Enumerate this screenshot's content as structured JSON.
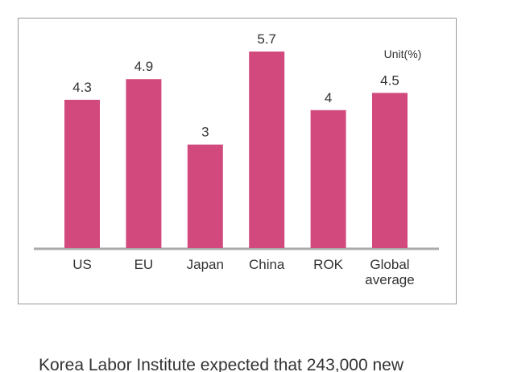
{
  "chart_data": {
    "type": "bar",
    "categories": [
      "US",
      "EU",
      "Japan",
      "China",
      "ROK",
      "Global average"
    ],
    "values": [
      4.3,
      4.9,
      3.0,
      5.7,
      4.0,
      4.5
    ],
    "color": "#d24a7d",
    "unit_label": "Unit(%)"
  },
  "caption": "Korea Labor Institute expected that 243,000 new"
}
